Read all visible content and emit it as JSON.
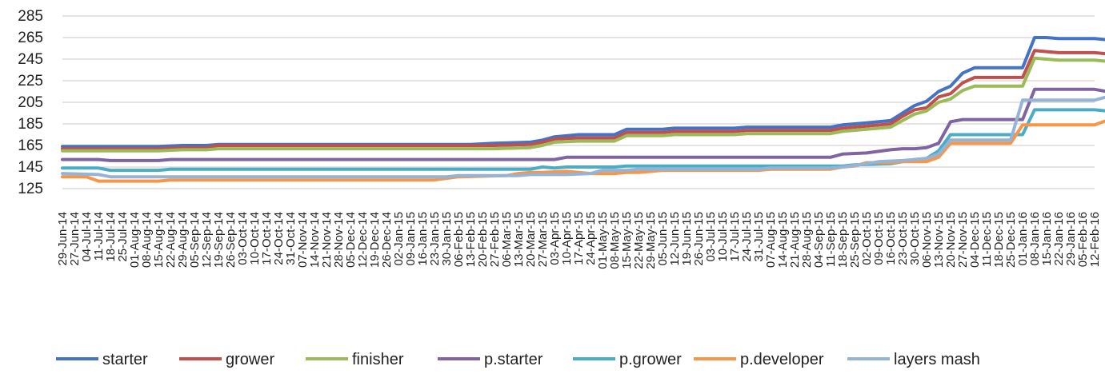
{
  "chart_data": {
    "type": "line",
    "title": "",
    "xlabel": "",
    "ylabel": "",
    "ylim": [
      125,
      285
    ],
    "yticks": [
      125,
      145,
      165,
      185,
      205,
      225,
      245,
      265,
      285
    ],
    "grid": true,
    "legend_position": "bottom",
    "x": [
      "29-Jun-14",
      "27-Jun-14",
      "04-Jul-14",
      "11-Jul-14",
      "18-Jul-14",
      "25-Jul-14",
      "01-Aug-14",
      "08-Aug-14",
      "15-Aug-14",
      "22-Aug-14",
      "29-Aug-14",
      "05-Sep-14",
      "12-Sep-14",
      "19-Sep-14",
      "26-Sep-14",
      "03-Oct-14",
      "10-Oct-14",
      "17-Oct-14",
      "24-Oct-14",
      "31-Oct-14",
      "07-Nov-14",
      "14-Nov-14",
      "21-Nov-14",
      "28-Nov-14",
      "05-Dec-14",
      "12-Dec-14",
      "19-Dec-14",
      "26-Dec-14",
      "02-Jan-15",
      "09-Jan-15",
      "16-Jan-15",
      "23-Jan-15",
      "30-Jan-15",
      "06-Feb-15",
      "13-Feb-15",
      "20-Feb-15",
      "27-Feb-15",
      "06-Mar-15",
      "13-Mar-15",
      "20-Mar-15",
      "27-Mar-15",
      "03-Apr-15",
      "10-Apr-15",
      "17-Apr-15",
      "24-Apr-15",
      "01-May-15",
      "08-May-15",
      "15-May-15",
      "22-May-15",
      "29-May-15",
      "05-Jun-15",
      "12-Jun-15",
      "19-Jun-15",
      "26-Jun-15",
      "03-Jul-15",
      "10-Jul-15",
      "17-Jul-15",
      "24-Jul-15",
      "31-Jul-15",
      "07-Aug-15",
      "14-Aug-15",
      "21-Aug-15",
      "28-Aug-15",
      "04-Sep-15",
      "11-Sep-15",
      "18-Sep-15",
      "25-Sep-15",
      "02-Oct-15",
      "09-Oct-15",
      "16-Oct-15",
      "23-Oct-15",
      "30-Oct-15",
      "06-Nov-15",
      "13-Nov-15",
      "20-Nov-15",
      "27-Nov-15",
      "04-Dec-15",
      "11-Dec-15",
      "18-Dec-15",
      "25-Dec-15",
      "01-Jan-16",
      "08-Jan-16",
      "15-Jan-16",
      "22-Jan-16",
      "29-Jan-16",
      "05-Feb-16",
      "12-Feb-16"
    ],
    "series": [
      {
        "name": "starter",
        "color": "#4472c4",
        "points": [
          [
            0,
            164
          ],
          [
            8,
            164
          ],
          [
            10,
            165
          ],
          [
            12,
            165
          ],
          [
            13,
            166
          ],
          [
            34,
            166
          ],
          [
            36,
            167
          ],
          [
            39,
            168
          ],
          [
            40,
            170
          ],
          [
            41,
            173
          ],
          [
            43,
            175
          ],
          [
            46,
            175
          ],
          [
            47,
            180
          ],
          [
            50,
            180
          ],
          [
            51,
            181
          ],
          [
            56,
            181
          ],
          [
            57,
            182
          ],
          [
            64,
            182
          ],
          [
            65,
            184
          ],
          [
            67,
            186
          ],
          [
            69,
            188
          ],
          [
            70,
            195
          ],
          [
            71,
            202
          ],
          [
            72,
            206
          ],
          [
            73,
            215
          ],
          [
            74,
            220
          ],
          [
            75,
            232
          ],
          [
            76,
            237
          ],
          [
            80,
            237
          ],
          [
            81,
            265
          ],
          [
            82,
            265
          ],
          [
            83,
            264
          ],
          [
            86,
            264
          ],
          [
            87,
            263
          ],
          [
            89,
            263
          ],
          [
            90,
            261
          ]
        ]
      },
      {
        "name": "grower",
        "color": "#c0504d",
        "points": [
          [
            0,
            162
          ],
          [
            8,
            162
          ],
          [
            10,
            163
          ],
          [
            12,
            163
          ],
          [
            13,
            165
          ],
          [
            34,
            165
          ],
          [
            36,
            165
          ],
          [
            39,
            166
          ],
          [
            40,
            168
          ],
          [
            41,
            171
          ],
          [
            43,
            172
          ],
          [
            46,
            172
          ],
          [
            47,
            177
          ],
          [
            50,
            177
          ],
          [
            51,
            178
          ],
          [
            56,
            178
          ],
          [
            57,
            179
          ],
          [
            64,
            179
          ],
          [
            65,
            181
          ],
          [
            67,
            183
          ],
          [
            69,
            185
          ],
          [
            70,
            192
          ],
          [
            71,
            198
          ],
          [
            72,
            200
          ],
          [
            73,
            210
          ],
          [
            74,
            213
          ],
          [
            75,
            223
          ],
          [
            76,
            228
          ],
          [
            80,
            228
          ],
          [
            81,
            253
          ],
          [
            82,
            252
          ],
          [
            83,
            251
          ],
          [
            86,
            251
          ],
          [
            87,
            250
          ],
          [
            89,
            250
          ],
          [
            90,
            250
          ]
        ]
      },
      {
        "name": "finisher",
        "color": "#9bbb59",
        "points": [
          [
            0,
            160
          ],
          [
            8,
            160
          ],
          [
            10,
            161
          ],
          [
            12,
            161
          ],
          [
            13,
            162
          ],
          [
            34,
            162
          ],
          [
            36,
            162
          ],
          [
            39,
            163
          ],
          [
            40,
            165
          ],
          [
            41,
            168
          ],
          [
            43,
            169
          ],
          [
            46,
            169
          ],
          [
            47,
            174
          ],
          [
            50,
            174
          ],
          [
            51,
            175
          ],
          [
            56,
            175
          ],
          [
            57,
            176
          ],
          [
            64,
            176
          ],
          [
            65,
            178
          ],
          [
            67,
            180
          ],
          [
            69,
            182
          ],
          [
            70,
            188
          ],
          [
            71,
            194
          ],
          [
            72,
            197
          ],
          [
            73,
            205
          ],
          [
            74,
            208
          ],
          [
            75,
            216
          ],
          [
            76,
            220
          ],
          [
            80,
            220
          ],
          [
            81,
            246
          ],
          [
            82,
            245
          ],
          [
            83,
            244
          ],
          [
            86,
            244
          ],
          [
            87,
            243
          ],
          [
            89,
            243
          ],
          [
            90,
            243
          ]
        ]
      },
      {
        "name": "p.starter",
        "color": "#8064a2",
        "points": [
          [
            0,
            152
          ],
          [
            3,
            152
          ],
          [
            4,
            151
          ],
          [
            8,
            151
          ],
          [
            9,
            152
          ],
          [
            38,
            152
          ],
          [
            41,
            152
          ],
          [
            42,
            154
          ],
          [
            64,
            154
          ],
          [
            65,
            157
          ],
          [
            67,
            158
          ],
          [
            69,
            161
          ],
          [
            70,
            162
          ],
          [
            71,
            162
          ],
          [
            72,
            163
          ],
          [
            73,
            167
          ],
          [
            74,
            187
          ],
          [
            75,
            189
          ],
          [
            80,
            189
          ],
          [
            81,
            217
          ],
          [
            86,
            217
          ],
          [
            87,
            215
          ],
          [
            89,
            215
          ],
          [
            90,
            216
          ]
        ]
      },
      {
        "name": "p.grower",
        "color": "#4bacc6",
        "points": [
          [
            0,
            144
          ],
          [
            3,
            144
          ],
          [
            4,
            142
          ],
          [
            8,
            142
          ],
          [
            9,
            143
          ],
          [
            39,
            143
          ],
          [
            40,
            145
          ],
          [
            41,
            144
          ],
          [
            42,
            145
          ],
          [
            46,
            145
          ],
          [
            47,
            146
          ],
          [
            64,
            146
          ],
          [
            65,
            146
          ],
          [
            66,
            147
          ],
          [
            69,
            148
          ],
          [
            70,
            150
          ],
          [
            71,
            152
          ],
          [
            72,
            153
          ],
          [
            73,
            160
          ],
          [
            74,
            175
          ],
          [
            75,
            175
          ],
          [
            80,
            175
          ],
          [
            81,
            198
          ],
          [
            86,
            198
          ],
          [
            87,
            197
          ],
          [
            89,
            197
          ],
          [
            90,
            197
          ]
        ]
      },
      {
        "name": "p.developer",
        "color": "#f79646",
        "points": [
          [
            0,
            136
          ],
          [
            2,
            136
          ],
          [
            3,
            132
          ],
          [
            8,
            132
          ],
          [
            9,
            133
          ],
          [
            31,
            133
          ],
          [
            33,
            136
          ],
          [
            37,
            137
          ],
          [
            38,
            139
          ],
          [
            39,
            140
          ],
          [
            40,
            140
          ],
          [
            42,
            141
          ],
          [
            44,
            139
          ],
          [
            45,
            139
          ],
          [
            46,
            139
          ],
          [
            47,
            140
          ],
          [
            48,
            140
          ],
          [
            50,
            142
          ],
          [
            58,
            142
          ],
          [
            59,
            143
          ],
          [
            64,
            143
          ],
          [
            65,
            145
          ],
          [
            66,
            146
          ],
          [
            67,
            149
          ],
          [
            69,
            149
          ],
          [
            70,
            150
          ],
          [
            72,
            150
          ],
          [
            73,
            154
          ],
          [
            74,
            167
          ],
          [
            75,
            167
          ],
          [
            79,
            167
          ],
          [
            80,
            184
          ],
          [
            86,
            184
          ],
          [
            87,
            188
          ],
          [
            89,
            188
          ],
          [
            90,
            186
          ]
        ]
      },
      {
        "name": "layers mash",
        "color": "#95b3d7",
        "points": [
          [
            0,
            139
          ],
          [
            3,
            138
          ],
          [
            4,
            136
          ],
          [
            8,
            136
          ],
          [
            9,
            136
          ],
          [
            31,
            136
          ],
          [
            32,
            136
          ],
          [
            33,
            137
          ],
          [
            37,
            137
          ],
          [
            38,
            137
          ],
          [
            39,
            138
          ],
          [
            42,
            138
          ],
          [
            44,
            139
          ],
          [
            45,
            142
          ],
          [
            47,
            142
          ],
          [
            48,
            143
          ],
          [
            58,
            143
          ],
          [
            59,
            144
          ],
          [
            64,
            144
          ],
          [
            65,
            145
          ],
          [
            67,
            148
          ],
          [
            68,
            150
          ],
          [
            70,
            151
          ],
          [
            71,
            152
          ],
          [
            72,
            153
          ],
          [
            73,
            157
          ],
          [
            74,
            170
          ],
          [
            75,
            170
          ],
          [
            79,
            170
          ],
          [
            80,
            207
          ],
          [
            86,
            207
          ],
          [
            87,
            210
          ],
          [
            88,
            209
          ],
          [
            89,
            208
          ],
          [
            90,
            207
          ]
        ]
      }
    ]
  }
}
